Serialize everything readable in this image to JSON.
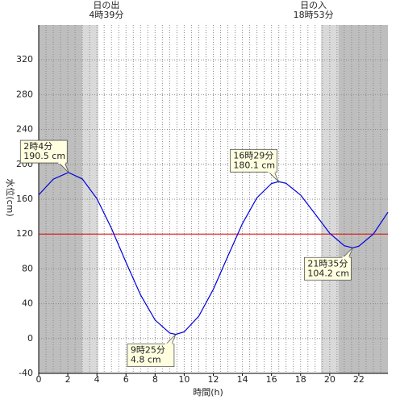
{
  "chart_data": {
    "type": "line",
    "x_label": "時間(h)",
    "y_label": "水位(cm)",
    "xlim": [
      0,
      24
    ],
    "xticks": [
      0,
      2,
      4,
      6,
      8,
      10,
      12,
      14,
      16,
      18,
      20,
      22
    ],
    "ylim": [
      -40,
      360
    ],
    "yticks": [
      -40,
      0,
      40,
      80,
      120,
      160,
      200,
      240,
      280,
      320
    ],
    "grid": true,
    "x_grid_step": 0.5,
    "shading": [
      {
        "from": 0,
        "to": 3,
        "color": "#bebebe"
      },
      {
        "from": 3,
        "to": 4.1,
        "color": "#d9d9d9"
      },
      {
        "from": 19.4,
        "to": 20.6,
        "color": "#d9d9d9"
      },
      {
        "from": 20.6,
        "to": 24,
        "color": "#bebebe"
      }
    ],
    "reference_line": {
      "value": 120,
      "color": "#e00000"
    },
    "sun": [
      {
        "label": "日の出",
        "time": "4時39分",
        "x": 4.65
      },
      {
        "label": "日の入",
        "time": "18時53分",
        "x": 18.883
      }
    ],
    "series": [
      {
        "color": "#0000dd",
        "x": [
          0,
          1,
          2,
          2.067,
          3,
          4,
          5,
          6,
          7,
          8,
          9,
          9.417,
          10,
          11,
          12,
          13,
          14,
          15,
          16,
          16.483,
          17,
          18,
          19,
          20,
          21,
          21.583,
          22,
          23,
          24
        ],
        "values": [
          165,
          183,
          190.4,
          190.5,
          183.2,
          160.6,
          126.6,
          87.4,
          50.1,
          21.3,
          6.3,
          4.8,
          7.7,
          25.7,
          56.5,
          94.5,
          131.9,
          161.7,
          178.1,
          180.1,
          178.2,
          164.7,
          143,
          120.9,
          106.6,
          104.2,
          106,
          120,
          145
        ]
      }
    ],
    "annotations": [
      {
        "time": "2時4分",
        "label": "190.5 cm",
        "x": 2.067,
        "y": 190.5,
        "kind": "high"
      },
      {
        "time": "9時25分",
        "label": "4.8 cm",
        "x": 9.417,
        "y": 4.8,
        "kind": "low"
      },
      {
        "time": "16時29分",
        "label": "180.1 cm",
        "x": 16.483,
        "y": 180.1,
        "kind": "high"
      },
      {
        "time": "21時35分",
        "label": "104.2 cm",
        "x": 21.583,
        "y": 104.2,
        "kind": "low"
      }
    ]
  }
}
